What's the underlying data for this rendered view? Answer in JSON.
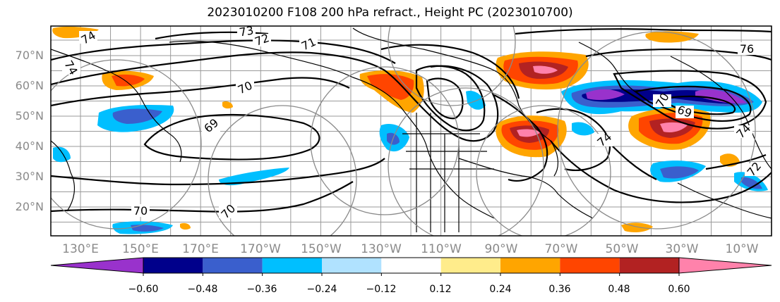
{
  "title": "2023010200 F108 200 hPa refract., Height PC (2023010700)",
  "lat_labels": [
    "70°N",
    "60°N",
    "50°N",
    "40°N",
    "30°N",
    "20°N"
  ],
  "lon_labels": [
    "130°E",
    "150°E",
    "170°E",
    "170°W",
    "150°W",
    "130°W",
    "110°W",
    "90°W",
    "70°W",
    "50°W",
    "30°W",
    "10°W"
  ],
  "contour_labels": [
    "74",
    "73",
    "72",
    "71",
    "70",
    "69",
    "70",
    "70",
    "74",
    "76",
    "69",
    "70",
    "74",
    "72",
    "74"
  ],
  "colorbar": {
    "colors": [
      "#9932cc",
      "#00008b",
      "#3a5fcd",
      "#00bfff",
      "#b0e2ff",
      "#ffffff",
      "#ffec8b",
      "#ffa500",
      "#ff4500",
      "#b22222",
      "#ff82ab"
    ],
    "labels": [
      "−0.60",
      "−0.48",
      "−0.36",
      "−0.24",
      "−0.12",
      "0.12",
      "0.24",
      "0.36",
      "0.48",
      "0.60"
    ]
  }
}
